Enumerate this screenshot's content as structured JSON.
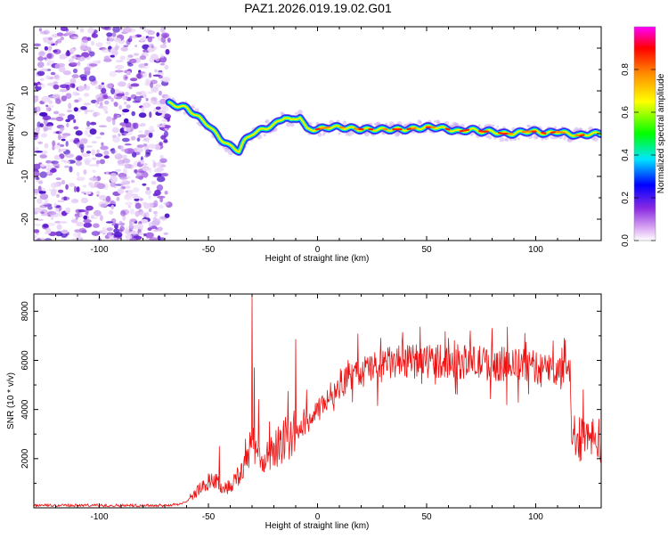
{
  "title": "PAZ1.2026.019.19.02.G01",
  "chart_data": [
    {
      "type": "heatmap",
      "name": "spectrogram",
      "xlabel": "Height of straight line (km)",
      "ylabel": "Frequency (Hz)",
      "xlim": [
        -130,
        130
      ],
      "ylim": [
        -25,
        25
      ],
      "x_ticks": [
        -100,
        -50,
        0,
        50,
        100
      ],
      "y_ticks": [
        -20,
        -10,
        0,
        10,
        20
      ],
      "noise_region": {
        "x_range": [
          -130,
          -68
        ],
        "y_range": [
          -25,
          25
        ]
      },
      "track": {
        "x": [
          -68,
          -60,
          -55,
          -50,
          -45,
          -40,
          -36,
          -34,
          -30,
          -25,
          -20,
          -15,
          -12,
          -8,
          -5,
          0,
          5,
          10,
          20,
          30,
          40,
          50,
          55,
          60,
          65,
          70,
          75,
          80,
          85,
          90,
          95,
          100,
          105,
          110,
          115,
          120,
          125,
          130
        ],
        "y": [
          7,
          6,
          4,
          2,
          -1,
          -3,
          -4,
          -2,
          0,
          1,
          2,
          4,
          3,
          4,
          1,
          1,
          1.5,
          1.5,
          1,
          1,
          1,
          1.5,
          1.5,
          1,
          0.5,
          1,
          0.5,
          0.5,
          0,
          0,
          0.5,
          0.5,
          0,
          0.5,
          0,
          -0.5,
          0,
          0
        ]
      },
      "colorbar": {
        "label": "Normalized spectral amplitude",
        "ticks": [
          "0.0",
          "0.2",
          "0.4",
          "0.6",
          "0.8"
        ],
        "range": [
          0,
          1
        ],
        "colors": [
          "#ffffff",
          "#d9a6f2",
          "#8a2be2",
          "#0000ff",
          "#00e5ff",
          "#00ff00",
          "#ffff00",
          "#ff8c00",
          "#ff0000",
          "#ff00ff"
        ]
      }
    },
    {
      "type": "line",
      "name": "snr",
      "xlabel": "Height of straight line (km)",
      "ylabel": "SNR (10 * v/v)",
      "xlim": [
        -130,
        130
      ],
      "ylim": [
        0,
        8700
      ],
      "x_ticks": [
        -100,
        -50,
        0,
        50,
        100
      ],
      "y_ticks": [
        2000,
        4000,
        6000,
        8000
      ],
      "color": "#ee1111",
      "baseline": {
        "x": [
          -130,
          -70,
          -62,
          -56,
          -52,
          -48,
          -44,
          -40,
          -36,
          -34,
          -32,
          -30,
          -28,
          -25,
          -20,
          -15,
          -10,
          -8,
          -5,
          0,
          5,
          10,
          15,
          20,
          25,
          30,
          35,
          40,
          45,
          50,
          55,
          60,
          65,
          70,
          75,
          80,
          85,
          90,
          95,
          100,
          105,
          110,
          115,
          117,
          119,
          122,
          126,
          130
        ],
        "y": [
          100,
          100,
          150,
          600,
          900,
          1200,
          800,
          900,
          1300,
          1600,
          2200,
          2800,
          2300,
          1800,
          2300,
          2800,
          3000,
          3200,
          3400,
          3900,
          4500,
          5000,
          5300,
          5500,
          5700,
          5800,
          5900,
          5900,
          5950,
          6000,
          6000,
          5950,
          5950,
          5900,
          5900,
          5850,
          5850,
          5800,
          5800,
          5700,
          5650,
          5600,
          5600,
          3000,
          2900,
          2900,
          2800,
          2800
        ]
      },
      "spikes": [
        {
          "x": -45,
          "y": 2500
        },
        {
          "x": -33,
          "y": 2800
        },
        {
          "x": -30,
          "y": 8650
        },
        {
          "x": -29,
          "y": 5700
        },
        {
          "x": -27,
          "y": 4400
        },
        {
          "x": -22,
          "y": 3500
        },
        {
          "x": -10,
          "y": 6850
        },
        {
          "x": -5,
          "y": 4800
        },
        {
          "x": 60,
          "y": 6900
        },
        {
          "x": 70,
          "y": 7200
        },
        {
          "x": 80,
          "y": 7300
        },
        {
          "x": 87,
          "y": 7350
        },
        {
          "x": 95,
          "y": 7100
        },
        {
          "x": 113,
          "y": 6900
        }
      ]
    }
  ]
}
